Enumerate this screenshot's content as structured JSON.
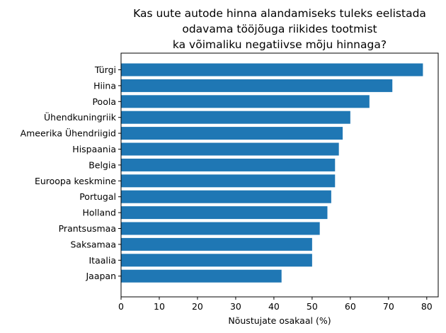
{
  "chart_data": {
    "type": "bar",
    "orientation": "horizontal",
    "title_lines": [
      "Kas uute autode hinna alandamiseks tuleks eelistada",
      "odavama tööjõuga riikides tootmist",
      "ka võimaliku negatiivse mõju hinnaga?"
    ],
    "xlabel": "Nõustujate osakaal (%)",
    "ylabel": "",
    "categories": [
      "Türgi",
      "Hiina",
      "Poola",
      "Ühendkuningriik",
      "Ameerika Ühendriigid",
      "Hispaania",
      "Belgia",
      "Euroopa keskmine",
      "Portugal",
      "Holland",
      "Prantsusmaa",
      "Saksamaa",
      "Itaalia",
      "Jaapan"
    ],
    "values": [
      79,
      71,
      65,
      60,
      58,
      57,
      56,
      56,
      55,
      54,
      52,
      50,
      50,
      42
    ],
    "xlim": [
      0,
      83
    ],
    "xticks": [
      0,
      10,
      20,
      30,
      40,
      50,
      60,
      70,
      80
    ],
    "bar_color": "#1f77b4",
    "grid": false,
    "legend": "none"
  }
}
